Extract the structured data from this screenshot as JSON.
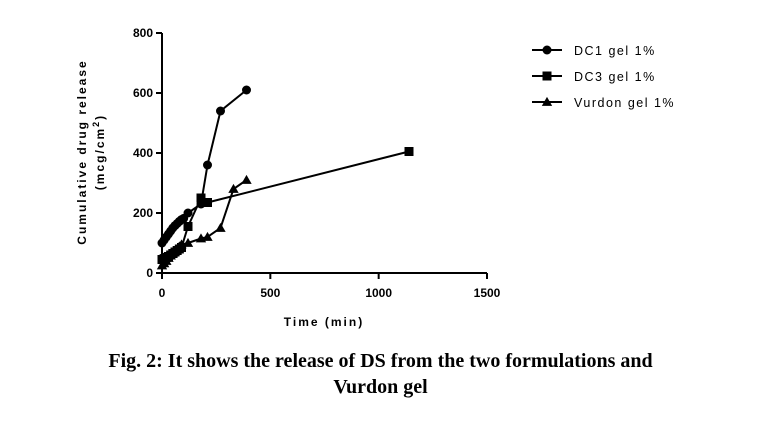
{
  "chart_data": {
    "type": "line",
    "xlabel": "Time (min)",
    "ylabel_line1": "Cumulative drug release",
    "ylabel_line2_prefix": "(mcg/cm",
    "ylabel_line2_sup": "2",
    "ylabel_line2_suffix": ")",
    "xlim": [
      0,
      1500
    ],
    "ylim": [
      0,
      800
    ],
    "xticks": [
      0,
      500,
      1000,
      1500
    ],
    "yticks": [
      0,
      200,
      400,
      600,
      800
    ],
    "xtick_labels": [
      "0",
      "500",
      "1000",
      "1500"
    ],
    "ytick_labels": [
      "0",
      "200",
      "400",
      "600",
      "800"
    ],
    "legend_position": "top-right",
    "grid": false,
    "series": [
      {
        "name": "DC1 gel 1%",
        "marker": "circle",
        "points": [
          [
            0,
            100
          ],
          [
            10,
            110
          ],
          [
            20,
            120
          ],
          [
            30,
            130
          ],
          [
            40,
            140
          ],
          [
            50,
            150
          ],
          [
            60,
            158
          ],
          [
            70,
            165
          ],
          [
            80,
            172
          ],
          [
            90,
            178
          ],
          [
            100,
            182
          ],
          [
            120,
            200
          ],
          [
            180,
            230
          ],
          [
            210,
            360
          ],
          [
            270,
            540
          ],
          [
            390,
            610
          ]
        ]
      },
      {
        "name": "DC3 gel 1%",
        "marker": "square",
        "points": [
          [
            0,
            45
          ],
          [
            10,
            48
          ],
          [
            20,
            52
          ],
          [
            30,
            55
          ],
          [
            40,
            60
          ],
          [
            50,
            65
          ],
          [
            60,
            70
          ],
          [
            70,
            75
          ],
          [
            80,
            80
          ],
          [
            90,
            85
          ],
          [
            120,
            155
          ],
          [
            180,
            250
          ],
          [
            210,
            235
          ],
          [
            1140,
            405
          ]
        ]
      },
      {
        "name": "Vurdon gel 1%",
        "marker": "triangle",
        "points": [
          [
            0,
            25
          ],
          [
            10,
            32
          ],
          [
            20,
            40
          ],
          [
            30,
            50
          ],
          [
            40,
            58
          ],
          [
            50,
            65
          ],
          [
            60,
            72
          ],
          [
            70,
            80
          ],
          [
            80,
            88
          ],
          [
            90,
            95
          ],
          [
            120,
            100
          ],
          [
            180,
            115
          ],
          [
            210,
            120
          ],
          [
            270,
            150
          ],
          [
            330,
            280
          ],
          [
            390,
            310
          ]
        ]
      }
    ]
  },
  "caption": {
    "line1": "Fig. 2: It shows the release of DS from the two formulations and",
    "line2": "Vurdon gel"
  }
}
